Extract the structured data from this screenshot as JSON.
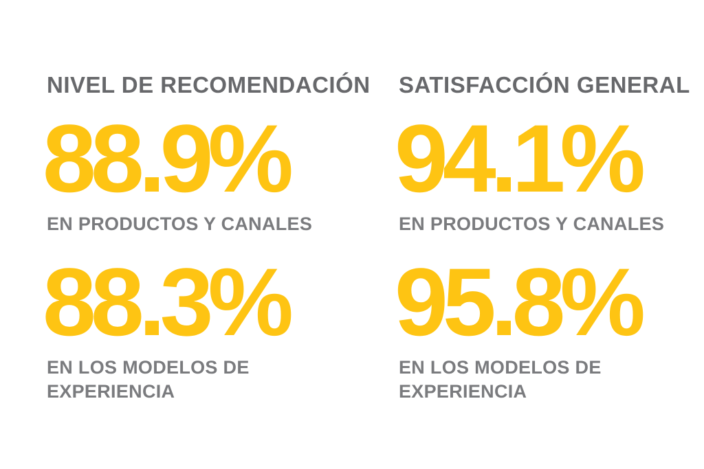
{
  "colors": {
    "accent_yellow": "#FEC413",
    "title_gray": "#67686B",
    "label_gray": "#7A7B7E",
    "background": "#FFFFFF"
  },
  "columns": [
    {
      "title": "NIVEL DE RECOMENDACIÓN",
      "stats": [
        {
          "value": "88.9",
          "unit": "%",
          "label": "EN PRODUCTOS Y CANALES"
        },
        {
          "value": "88.3",
          "unit": "%",
          "label": "EN LOS MODELOS DE\nEXPERIENCIA"
        }
      ]
    },
    {
      "title": "SATISFACCIÓN GENERAL",
      "stats": [
        {
          "value": "94.1",
          "unit": "%",
          "label": "EN PRODUCTOS Y CANALES"
        },
        {
          "value": "95.8",
          "unit": "%",
          "label": "EN LOS MODELOS DE\nEXPERIENCIA"
        }
      ]
    }
  ],
  "chart_data": {
    "type": "table",
    "title": "",
    "categories": [
      "EN PRODUCTOS Y CANALES",
      "EN LOS MODELOS DE EXPERIENCIA"
    ],
    "series": [
      {
        "name": "NIVEL DE RECOMENDACIÓN",
        "values": [
          88.9,
          88.3
        ]
      },
      {
        "name": "SATISFACCIÓN GENERAL",
        "values": [
          94.1,
          95.8
        ]
      }
    ],
    "unit": "%",
    "legend_position": "none",
    "grid": false
  }
}
